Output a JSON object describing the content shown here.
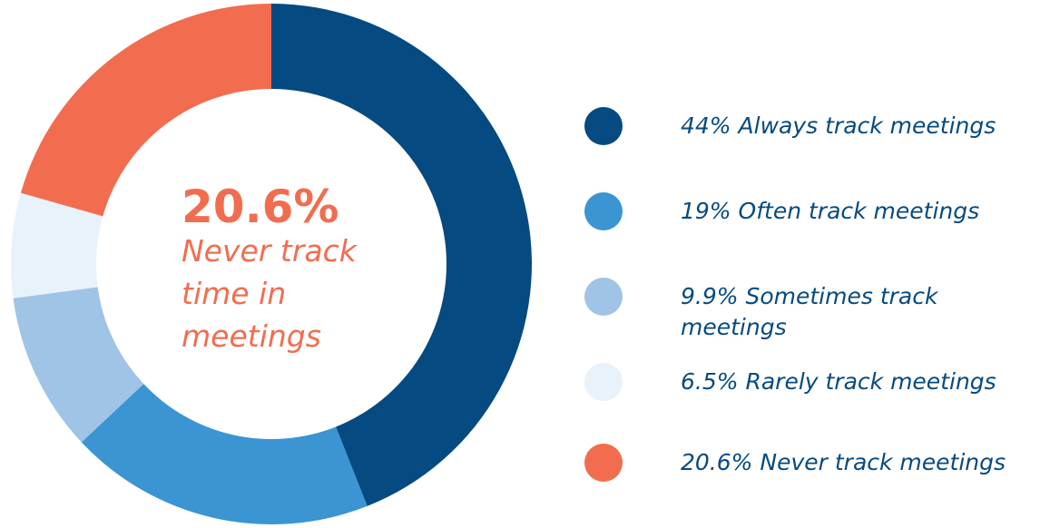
{
  "chart_data": {
    "type": "donut",
    "categories": [
      "Always track meetings",
      "Often track meetings",
      "Sometimes track meetings",
      "Rarely track meetings",
      "Never track meetings"
    ],
    "values": [
      44,
      19,
      9.9,
      6.5,
      20.6
    ],
    "value_labels": [
      "44%",
      "19%",
      "9.9%",
      "6.5%",
      "20.6%"
    ],
    "colors": [
      "#054a80",
      "#3a95d2",
      "#a0c4e6",
      "#e8f2fb",
      "#f26d4f"
    ],
    "center_text": [
      "Never track",
      "time in",
      "meetings"
    ]
  }
}
